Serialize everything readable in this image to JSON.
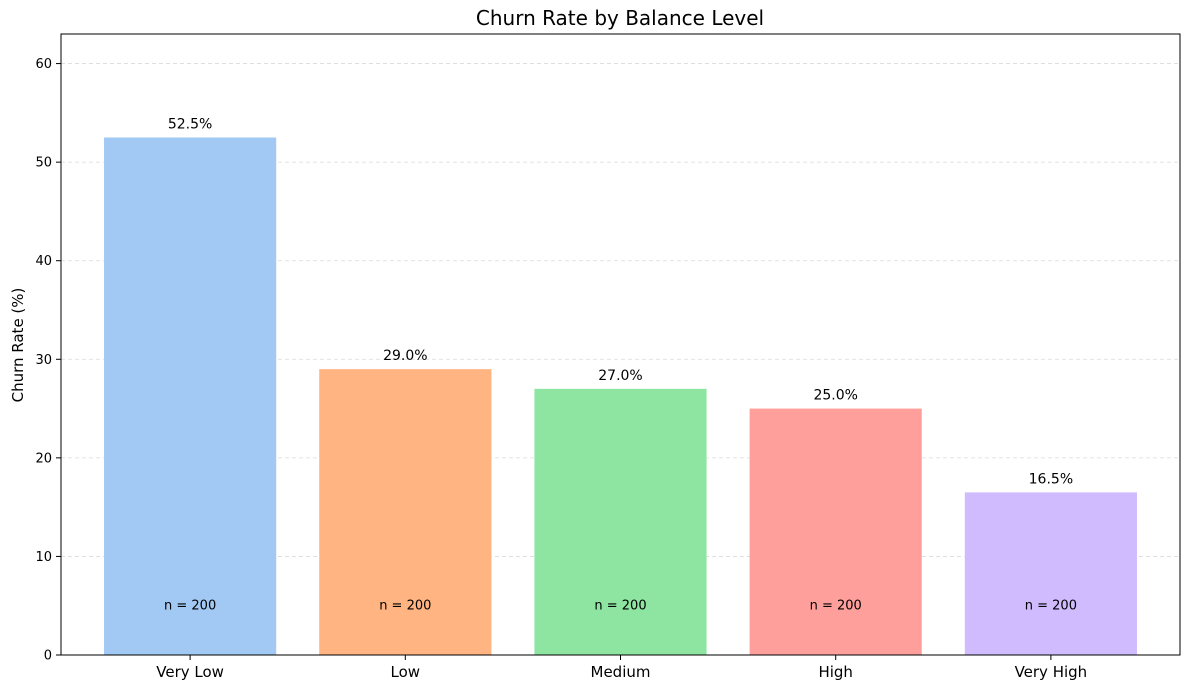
{
  "chart_data": {
    "type": "bar",
    "title": "Churn Rate by Balance Level",
    "xlabel": "",
    "ylabel": "Churn Rate (%)",
    "categories": [
      "Very Low",
      "Low",
      "Medium",
      "High",
      "Very High"
    ],
    "values": [
      52.5,
      29.0,
      27.0,
      25.0,
      16.5
    ],
    "value_labels": [
      "52.5%",
      "29.0%",
      "27.0%",
      "25.0%",
      "16.5%"
    ],
    "count_labels": [
      "n = 200",
      "n = 200",
      "n = 200",
      "n = 200",
      "n = 200"
    ],
    "colors": [
      "#a1c9f4",
      "#ffb482",
      "#8de5a1",
      "#ff9f9b",
      "#d0bbff"
    ],
    "ylim": [
      0,
      63
    ],
    "yticks": [
      0,
      10,
      20,
      30,
      40,
      50,
      60
    ],
    "grid": true,
    "legend": "none"
  }
}
